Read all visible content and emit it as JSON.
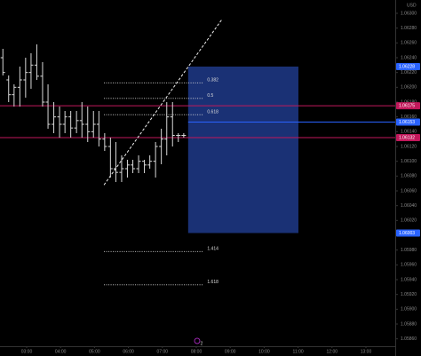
{
  "chart_data": {
    "type": "ohlc",
    "currency": "USD",
    "x": [
      2.3,
      2.47,
      2.63,
      2.8,
      2.97,
      3.13,
      3.3,
      3.47,
      3.63,
      3.8,
      3.97,
      4.13,
      4.3,
      4.47,
      4.63,
      4.8,
      4.97,
      5.13,
      5.3,
      5.47,
      5.63,
      5.8,
      5.97,
      6.13,
      6.3,
      6.47,
      6.63,
      6.8,
      6.97,
      7.13,
      7.3,
      7.47,
      7.63
    ],
    "open": [
      1.0624,
      1.0621,
      1.0619,
      1.062,
      1.0621,
      1.0622,
      1.0623,
      1.06215,
      1.0618,
      1.0615,
      1.0616,
      1.0615,
      1.0616,
      1.06145,
      1.06155,
      1.0615,
      1.0614,
      1.0615,
      1.0613,
      1.0612,
      1.0609,
      1.06085,
      1.0609,
      1.06095,
      1.0609,
      1.061,
      1.06095,
      1.061,
      1.0612,
      1.0613,
      1.0616,
      1.06135,
      1.06135
    ],
    "high": [
      1.06252,
      1.06216,
      1.06204,
      1.06228,
      1.0624,
      1.06246,
      1.06258,
      1.06234,
      1.06204,
      1.0618,
      1.06174,
      1.06168,
      1.06168,
      1.06168,
      1.0618,
      1.06174,
      1.06168,
      1.06168,
      1.06138,
      1.06132,
      1.06126,
      1.06108,
      1.06102,
      1.06102,
      1.06108,
      1.06102,
      1.06108,
      1.06126,
      1.06144,
      1.0618,
      1.0618,
      1.06138,
      1.06138
    ],
    "low": [
      1.06216,
      1.0618,
      1.06174,
      1.06174,
      1.06186,
      1.06198,
      1.0621,
      1.06174,
      1.06144,
      1.06138,
      1.06132,
      1.06138,
      1.06132,
      1.06138,
      1.06132,
      1.06126,
      1.06132,
      1.0612,
      1.06114,
      1.06078,
      1.06072,
      1.06072,
      1.06078,
      1.06084,
      1.06084,
      1.06084,
      1.0609,
      1.06078,
      1.06096,
      1.06108,
      1.0612,
      1.06126,
      1.06132
    ],
    "close": [
      1.0622,
      1.0619,
      1.062,
      1.0621,
      1.0622,
      1.0623,
      1.06215,
      1.0618,
      1.0615,
      1.0616,
      1.0615,
      1.0616,
      1.06145,
      1.06155,
      1.0615,
      1.0614,
      1.0615,
      1.0613,
      1.0612,
      1.0609,
      1.06085,
      1.0609,
      1.06095,
      1.0609,
      1.061,
      1.06095,
      1.061,
      1.0612,
      1.0613,
      1.0616,
      1.06135,
      1.06135,
      1.06135
    ],
    "color": "#d8d8d8",
    "xlim": [
      2.215,
      13.864
    ],
    "ylim": [
      1.0585,
      1.06318
    ],
    "xticks": [
      {
        "value": 3,
        "label": "03:00"
      },
      {
        "value": 4,
        "label": "04:00"
      },
      {
        "value": 5,
        "label": "05:00"
      },
      {
        "value": 6,
        "label": "06:00"
      },
      {
        "value": 7,
        "label": "07:00"
      },
      {
        "value": 8,
        "label": "08:00"
      },
      {
        "value": 9,
        "label": "09:00"
      },
      {
        "value": 10,
        "label": "10:00"
      },
      {
        "value": 11,
        "label": "11:00"
      },
      {
        "value": 12,
        "label": "12:00"
      },
      {
        "value": 13,
        "label": "13:00"
      }
    ],
    "yticks": [
      {
        "value": 1.0586,
        "label": "1.05860"
      },
      {
        "value": 1.0588,
        "label": "1.05880"
      },
      {
        "value": 1.059,
        "label": "1.05900"
      },
      {
        "value": 1.0592,
        "label": "1.05920"
      },
      {
        "value": 1.0594,
        "label": "1.05940"
      },
      {
        "value": 1.0596,
        "label": "1.05960"
      },
      {
        "value": 1.0598,
        "label": "1.05980"
      },
      {
        "value": 1.06,
        "label": "1.06000"
      },
      {
        "value": 1.0602,
        "label": "1.06020"
      },
      {
        "value": 1.0604,
        "label": "1.06040"
      },
      {
        "value": 1.0606,
        "label": "1.06060"
      },
      {
        "value": 1.0608,
        "label": "1.06080"
      },
      {
        "value": 1.061,
        "label": "1.06100"
      },
      {
        "value": 1.0612,
        "label": "1.06120"
      },
      {
        "value": 1.0614,
        "label": "1.06140"
      },
      {
        "value": 1.0616,
        "label": "1.06160"
      },
      {
        "value": 1.0618,
        "label": "1.06180"
      },
      {
        "value": 1.062,
        "label": "1.06200"
      },
      {
        "value": 1.0622,
        "label": "1.06220"
      },
      {
        "value": 1.0624,
        "label": "1.06240"
      },
      {
        "value": 1.0626,
        "label": "1.06260"
      },
      {
        "value": 1.0628,
        "label": "1.06280"
      },
      {
        "value": 1.063,
        "label": "1.06300"
      }
    ],
    "levels": [
      {
        "label": "0.382",
        "value": 1.06206,
        "x": [
          5.28,
          8.22
        ]
      },
      {
        "label": "0.5",
        "value": 1.06185,
        "x": [
          5.28,
          8.22
        ]
      },
      {
        "label": "0.618",
        "value": 1.06163,
        "x": [
          5.28,
          8.22
        ]
      },
      {
        "label": "1.414",
        "value": 1.05978,
        "x": [
          5.28,
          8.22
        ]
      },
      {
        "label": "1.618",
        "value": 1.05933,
        "x": [
          5.28,
          8.22
        ]
      }
    ],
    "box": {
      "x": [
        7.76,
        11.01
      ],
      "y": [
        1.06228,
        1.06003
      ],
      "color": "#1e3a8a"
    },
    "trendline": {
      "x": [
        5.28,
        8.76
      ],
      "y": [
        1.06068,
        1.06292
      ]
    },
    "hlines": [
      {
        "value": 1.06175,
        "color": "#c2185b"
      },
      {
        "value": 1.06153,
        "color": "#2962ff"
      },
      {
        "value": 1.06132,
        "color": "#c2185b"
      }
    ],
    "box_label_color": "#2962ff",
    "marker_label": "2"
  }
}
